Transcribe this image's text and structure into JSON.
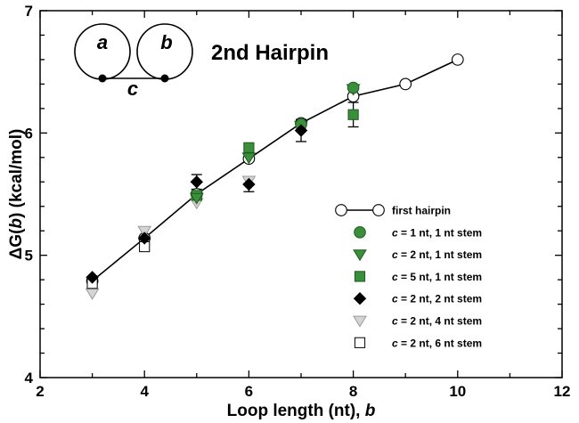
{
  "chart_data": {
    "type": "scatter",
    "title": "2nd Hairpin",
    "xlabel": "Loop length (nt), ",
    "xlabel_var": "b",
    "ylabel_prefix": "ΔG(",
    "ylabel_var": "b",
    "ylabel_suffix": ") (kcal/mol)",
    "xlim": [
      2,
      12
    ],
    "ylim": [
      4,
      7
    ],
    "xticks": [
      2,
      4,
      6,
      8,
      10,
      12
    ],
    "yticks": [
      4,
      5,
      6,
      7
    ],
    "grid": false,
    "legend_position": "bottom-right",
    "inset": {
      "loop_a": "a",
      "loop_b": "b",
      "linker": "c"
    },
    "series": [
      {
        "name": "first hairpin",
        "marker": "circle-open",
        "line": true,
        "points": [
          [
            3,
            4.79
          ],
          [
            4,
            5.14
          ],
          [
            5,
            5.5
          ],
          [
            6,
            5.79
          ],
          [
            7,
            6.08
          ],
          [
            8,
            6.3
          ],
          [
            9,
            6.4
          ],
          [
            10,
            6.6
          ]
        ]
      },
      {
        "name_parts": [
          "c",
          " = 1 nt, 1 nt stem"
        ],
        "marker": "circle-green",
        "points": [
          [
            7,
            6.07
          ],
          [
            8,
            6.37
          ]
        ]
      },
      {
        "name_parts": [
          "c",
          " = 2 nt, 1 nt stem"
        ],
        "marker": "triangle-down-green",
        "points": [
          [
            5,
            5.47
          ],
          [
            6,
            5.8
          ],
          [
            7,
            6.06
          ],
          [
            8,
            6.36
          ]
        ]
      },
      {
        "name_parts": [
          "c",
          " = 5 nt, 1 nt stem"
        ],
        "marker": "square-green",
        "points": [
          [
            5,
            5.49
          ],
          [
            6,
            5.88
          ],
          [
            8,
            6.15
          ]
        ]
      },
      {
        "name_parts": [
          "c",
          " = 2 nt, 2 nt stem"
        ],
        "marker": "diamond-black",
        "points": [
          [
            3,
            4.82
          ],
          [
            4,
            5.14
          ],
          [
            5,
            5.6
          ],
          [
            6,
            5.58
          ],
          [
            7,
            6.02
          ]
        ]
      },
      {
        "name_parts": [
          "c",
          " = 2 nt, 4 nt stem"
        ],
        "marker": "triangle-down-gray",
        "points": [
          [
            3,
            4.69
          ],
          [
            4,
            5.2
          ],
          [
            5,
            5.43
          ],
          [
            6,
            5.61
          ]
        ]
      },
      {
        "name_parts": [
          "c",
          " = 2 nt, 6 nt stem"
        ],
        "marker": "square-open",
        "points": [
          [
            3,
            4.77
          ],
          [
            4,
            5.07
          ]
        ]
      }
    ],
    "error_bars": [
      {
        "x": 5,
        "y": 5.6,
        "low": 5.54,
        "high": 5.66
      },
      {
        "x": 6,
        "y": 5.58,
        "low": 5.52,
        "high": 5.64
      },
      {
        "x": 7,
        "y": 6.02,
        "low": 5.93,
        "high": 6.11
      },
      {
        "x": 8,
        "y": 6.15,
        "low": 6.05,
        "high": 6.25
      },
      {
        "x": 7,
        "y": 6.07,
        "low": 6.03,
        "high": 6.11
      }
    ],
    "colors": {
      "green": "#3a8f3a",
      "green_edge": "#1f5a1f",
      "gray": "#d4d4d4",
      "axis": "#000000"
    }
  }
}
